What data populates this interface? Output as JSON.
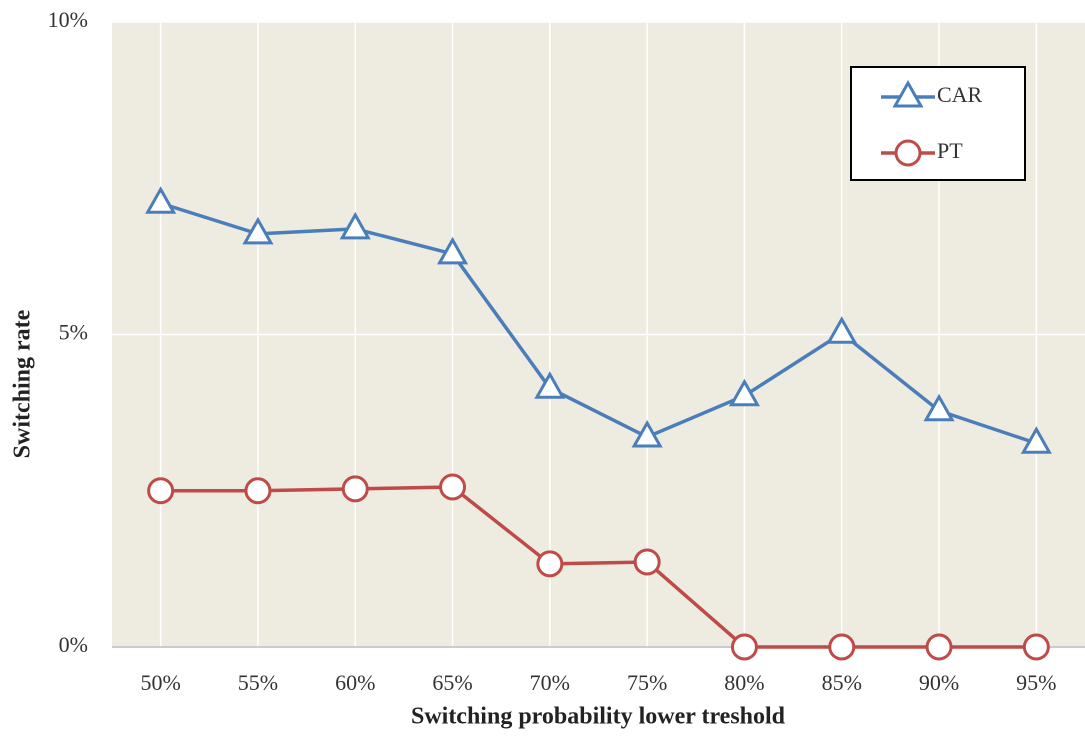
{
  "chart_data": {
    "type": "line",
    "x_label": "Switching probability lower treshold",
    "y_label": "Switching rate",
    "categories": [
      "50%",
      "55%",
      "60%",
      "65%",
      "70%",
      "75%",
      "80%",
      "85%",
      "90%",
      "95%"
    ],
    "series": [
      {
        "name": "CAR",
        "color": "#4a7ebb",
        "marker": "triangle",
        "values": [
          7.1,
          6.61,
          6.69,
          6.29,
          4.14,
          3.36,
          4.02,
          5.02,
          3.78,
          3.26
        ]
      },
      {
        "name": "PT",
        "color": "#be4b48",
        "marker": "circle",
        "values": [
          2.5,
          2.5,
          2.53,
          2.56,
          1.33,
          1.36,
          0,
          0,
          0,
          0
        ]
      }
    ],
    "ylim": [
      0,
      10
    ],
    "yticks": [
      {
        "value": 0,
        "label": "0%"
      },
      {
        "value": 5,
        "label": "5%"
      },
      {
        "value": 10,
        "label": "10%"
      }
    ],
    "grid": true,
    "legend": "top-right"
  }
}
